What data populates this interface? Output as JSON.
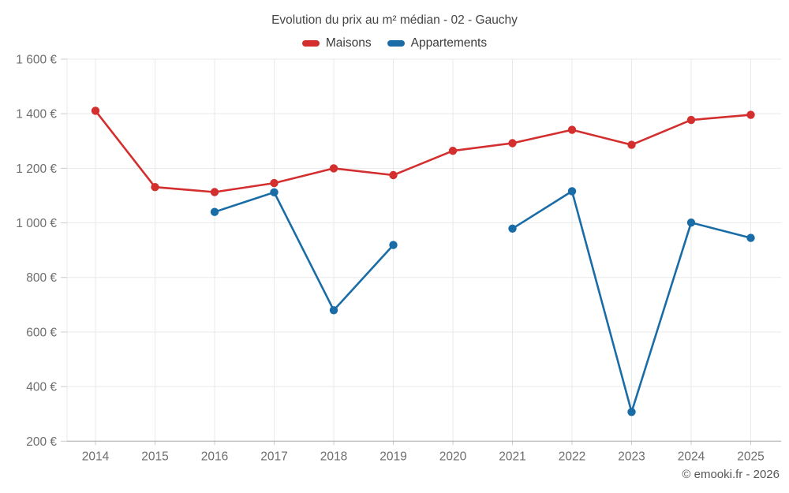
{
  "chart": {
    "title": "Evolution du prix au m² médian - 02 - Gauchy"
  },
  "chart_data": {
    "type": "line",
    "x": [
      2014,
      2015,
      2016,
      2017,
      2018,
      2019,
      2020,
      2021,
      2022,
      2023,
      2024,
      2025
    ],
    "series": [
      {
        "name": "Maisons",
        "color": "#d32f2f",
        "values": [
          1411,
          1131,
          1113,
          1146,
          1200,
          1175,
          1264,
          1292,
          1341,
          1286,
          1377,
          1396
        ]
      },
      {
        "name": "Appartements",
        "color": "#1a6ca6",
        "values": [
          null,
          null,
          1040,
          1112,
          680,
          919,
          null,
          979,
          1116,
          307,
          1001,
          945
        ]
      }
    ],
    "ylim": [
      200,
      1600
    ],
    "yticks": [
      200,
      400,
      600,
      800,
      1000,
      1200,
      1400,
      1600
    ],
    "ytick_labels": [
      "200 €",
      "400 €",
      "600 €",
      "800 €",
      "1 000 €",
      "1 200 €",
      "1 400 €",
      "1 600 €"
    ],
    "grid": true,
    "legend_position": "top",
    "ylabel": "",
    "xlabel": ""
  },
  "footer": {
    "copyright": "© emooki.fr - 2026"
  }
}
